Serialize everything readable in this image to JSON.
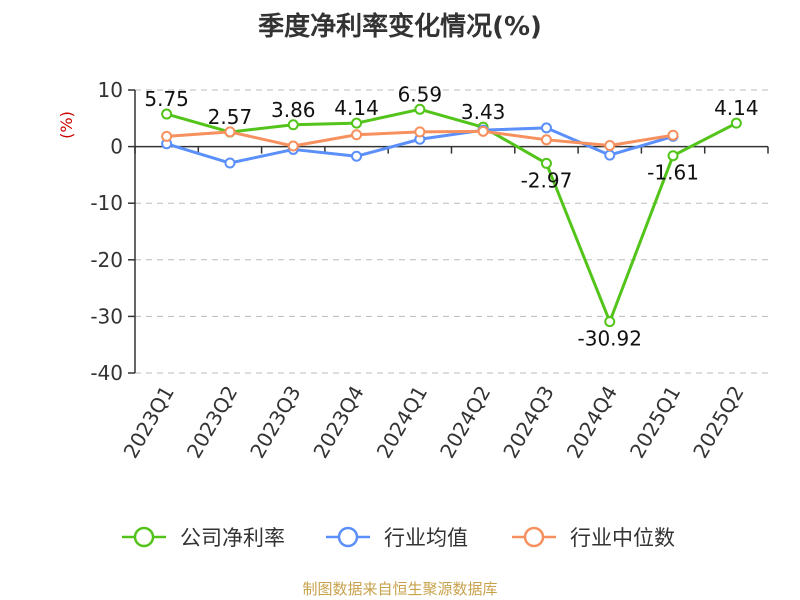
{
  "chart_data": {
    "type": "line",
    "title": "季度净利率变化情况(%)",
    "ylabel": "(%)",
    "categories": [
      "2023Q1",
      "2023Q2",
      "2023Q3",
      "2023Q4",
      "2024Q1",
      "2024Q2",
      "2024Q3",
      "2024Q4",
      "2025Q1",
      "2025Q2"
    ],
    "ylim": [
      -40,
      10
    ],
    "yticks": [
      10,
      0,
      -10,
      -20,
      -30,
      -40
    ],
    "grid": true,
    "legend_position": "bottom",
    "series": [
      {
        "name": "公司净利率",
        "color": "#52c41a",
        "values": [
          5.75,
          2.57,
          3.86,
          4.14,
          6.59,
          3.43,
          -2.97,
          -30.92,
          -1.61,
          4.14
        ],
        "labels": [
          "5.75",
          "2.57",
          "3.86",
          "4.14",
          "6.59",
          "3.43",
          "-2.97",
          "-30.92",
          "-1.61",
          "4.14"
        ]
      },
      {
        "name": "行业均值",
        "color": "#5b8ff9",
        "values": [
          0.5,
          -2.9,
          -0.5,
          -1.7,
          1.3,
          2.9,
          3.3,
          -1.5,
          1.8,
          null
        ]
      },
      {
        "name": "行业中位数",
        "color": "#f6905e",
        "values": [
          1.8,
          2.6,
          0.1,
          2.1,
          2.6,
          2.7,
          1.2,
          0.2,
          2.0,
          null
        ]
      }
    ]
  },
  "source": "制图数据来自恒生聚源数据库",
  "colors": {
    "unit": "#cc0000",
    "grid": "#bbbbbb",
    "axis": "#333333"
  }
}
